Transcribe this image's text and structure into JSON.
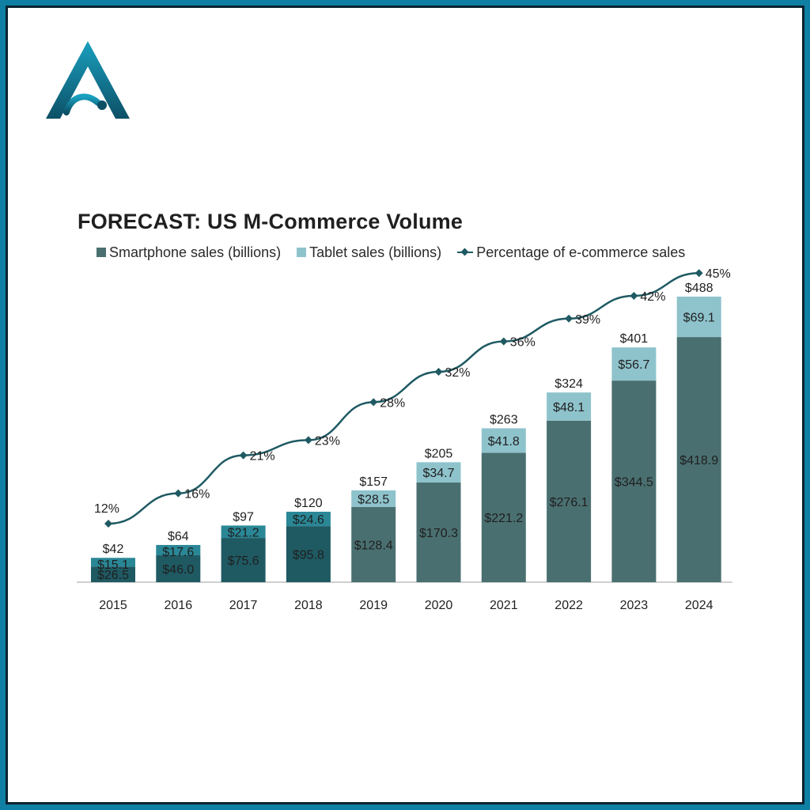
{
  "chart_data": {
    "type": "bar",
    "title": "FORECAST: US M-Commerce Volume",
    "categories": [
      "2015",
      "2016",
      "2017",
      "2018",
      "2019",
      "2020",
      "2021",
      "2022",
      "2023",
      "2024"
    ],
    "series": [
      {
        "name": "Smartphone sales (billions)",
        "kind": "bar",
        "values": [
          26.5,
          46.0,
          75.6,
          95.8,
          128.4,
          170.3,
          221.2,
          276.1,
          344.5,
          418.9
        ],
        "labels": [
          "$26.5",
          "$46.0",
          "$75.6",
          "$95.8",
          "$128.4",
          "$170.3",
          "$221.2",
          "$276.1",
          "$344.5",
          "$418.9"
        ]
      },
      {
        "name": "Tablet sales (billions)",
        "kind": "bar",
        "values": [
          15.1,
          17.6,
          21.2,
          24.6,
          28.5,
          34.7,
          41.8,
          48.1,
          56.7,
          69.1
        ],
        "labels": [
          "$15.1",
          "$17.6",
          "$21.2",
          "$24.6",
          "$28.5",
          "$34.7",
          "$41.8",
          "$48.1",
          "$56.7",
          "$69.1"
        ]
      },
      {
        "name": "Percentage of e-commerce sales",
        "kind": "line",
        "values": [
          12,
          16,
          21,
          23,
          28,
          32,
          36,
          39,
          42,
          45
        ],
        "labels": [
          "12%",
          "16%",
          "21%",
          "23%",
          "28%",
          "32%",
          "36%",
          "39%",
          "42%",
          "45%"
        ]
      }
    ],
    "totals": [
      42,
      64,
      97,
      120,
      157,
      205,
      263,
      324,
      401,
      488
    ],
    "total_labels": [
      "$42",
      "$64",
      "$97",
      "$120",
      "$157",
      "$205",
      "$263",
      "$324",
      "$401",
      "$488"
    ],
    "stacked": true,
    "ylim": [
      0,
      488
    ],
    "grid": false,
    "legend_position": "top",
    "colors": {
      "smartphone_dark": "#1f5a63",
      "smartphone": "#4a6f70",
      "tablet_dark": "#2a8796",
      "tablet": "#8ec3cc",
      "line": "#1f5a63",
      "axis": "#bfbfbf",
      "text": "#2a2a2a"
    }
  },
  "logo": {
    "icon": "letter-a-logo-icon",
    "colors": [
      "#1aa0bf",
      "#0c5066"
    ]
  }
}
